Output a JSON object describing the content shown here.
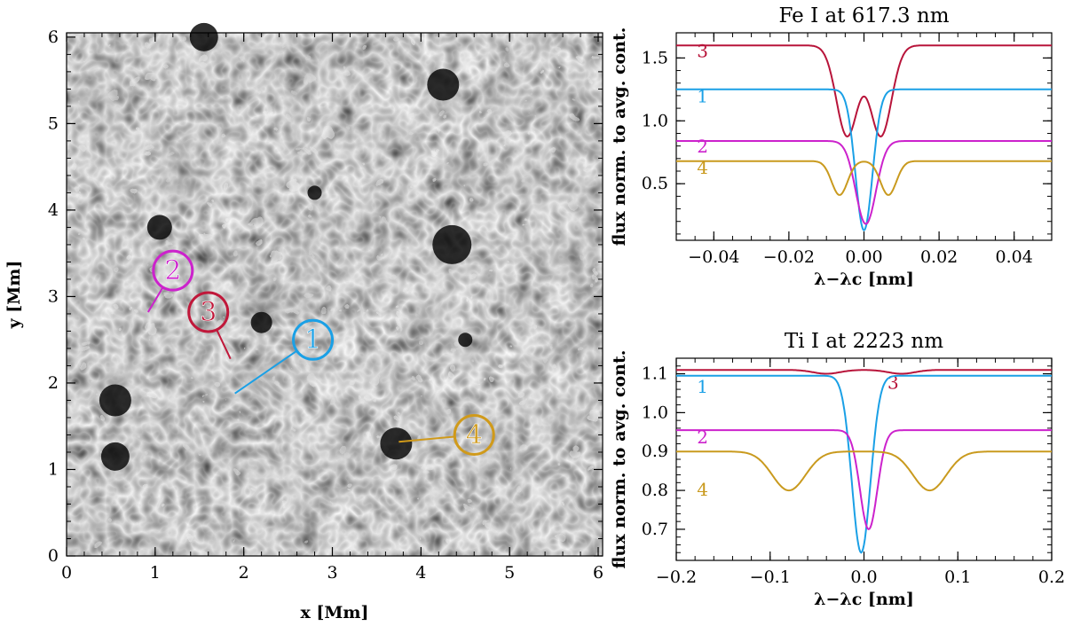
{
  "chart_data": [
    {
      "type": "heatmap",
      "xlabel": "x [Mm]",
      "ylabel": "y [Mm]",
      "xlim": [
        0,
        6.05
      ],
      "ylim": [
        0,
        6.05
      ],
      "x_ticks": [
        "0",
        "1",
        "2",
        "3",
        "4",
        "5",
        "6"
      ],
      "y_ticks": [
        "0",
        "1",
        "2",
        "3",
        "4",
        "5",
        "6"
      ],
      "colormap": "grayscale",
      "markers": [
        {
          "label": "1",
          "color": "#1aa0e6",
          "x": 2.78,
          "y": 2.5,
          "target": [
            1.9,
            1.88
          ]
        },
        {
          "label": "2",
          "color": "#cc22cc",
          "x": 1.2,
          "y": 3.3,
          "target": [
            0.92,
            2.82
          ]
        },
        {
          "label": "3",
          "color": "#c0183a",
          "x": 1.6,
          "y": 2.82,
          "target": [
            1.85,
            2.28
          ]
        },
        {
          "label": "4",
          "color": "#d09a1a",
          "x": 4.6,
          "y": 1.4,
          "target": [
            3.75,
            1.32
          ]
        }
      ]
    },
    {
      "type": "line",
      "title": "Fe I at 617.3 nm",
      "xlabel": "λ−λc [nm]",
      "ylabel": "flux norm. to avg. cont.",
      "xlim": [
        -0.05,
        0.05
      ],
      "ylim": [
        0.05,
        1.7
      ],
      "x_ticks": [
        "−0.04",
        "−0.02",
        "0.00",
        "0.02",
        "0.04"
      ],
      "y_ticks": [
        "0.5",
        "1.0",
        "1.5"
      ],
      "series": [
        {
          "name": "3",
          "color": "#b8143a",
          "continuum": 1.6,
          "dips": [
            {
              "c": -0.0045,
              "w": 0.004,
              "d": 0.72
            },
            {
              "c": 0.0045,
              "w": 0.004,
              "d": 0.72
            },
            {
              "c": 0.0,
              "w": 0.006,
              "d": 0.0
            }
          ],
          "label_pos": [
            -0.0445,
            1.55
          ]
        },
        {
          "name": "1",
          "color": "#1aa0e6",
          "continuum": 1.25,
          "dips": [
            {
              "c": 0.0,
              "w": 0.0032,
              "d": 1.12
            }
          ],
          "label_pos": [
            -0.0445,
            1.19
          ]
        },
        {
          "name": "2",
          "color": "#cc22cc",
          "continuum": 0.84,
          "dips": [
            {
              "c": 0.0005,
              "w": 0.0038,
              "d": 0.66
            }
          ],
          "label_pos": [
            -0.0445,
            0.79
          ]
        },
        {
          "name": "4",
          "color": "#c99a1e",
          "continuum": 0.68,
          "dips": [
            {
              "c": -0.0065,
              "w": 0.003,
              "d": 0.27
            },
            {
              "c": 0.0065,
              "w": 0.003,
              "d": 0.27
            }
          ],
          "label_pos": [
            -0.0445,
            0.62
          ]
        }
      ]
    },
    {
      "type": "line",
      "title": "Ti I at 2223 nm",
      "xlabel": "λ−λc [nm]",
      "ylabel": "flux norm. to avg. cont.",
      "xlim": [
        -0.2,
        0.2
      ],
      "ylim": [
        0.62,
        1.14
      ],
      "x_ticks": [
        "−0.2",
        "−0.1",
        "0.0",
        "0.1",
        "0.2"
      ],
      "y_ticks": [
        "0.7",
        "0.8",
        "0.9",
        "1.0",
        "1.1"
      ],
      "series": [
        {
          "name": "3",
          "color": "#b8143a",
          "continuum": 1.11,
          "dips": [
            {
              "c": -0.04,
              "w": 0.02,
              "d": 0.01
            },
            {
              "c": 0.04,
              "w": 0.02,
              "d": 0.01
            }
          ],
          "label_pos": [
            0.025,
            1.075
          ]
        },
        {
          "name": "1",
          "color": "#1aa0e6",
          "continuum": 1.095,
          "dips": [
            {
              "c": -0.003,
              "w": 0.014,
              "d": 0.455
            }
          ],
          "label_pos": [
            -0.178,
            1.065
          ]
        },
        {
          "name": "2",
          "color": "#cc22cc",
          "continuum": 0.955,
          "dips": [
            {
              "c": 0.005,
              "w": 0.013,
              "d": 0.255
            }
          ],
          "label_pos": [
            -0.178,
            0.935
          ]
        },
        {
          "name": "4",
          "color": "#c99a1e",
          "continuum": 0.9,
          "dips": [
            {
              "c": -0.08,
              "w": 0.025,
              "d": 0.1
            },
            {
              "c": 0.07,
              "w": 0.025,
              "d": 0.1
            }
          ],
          "label_pos": [
            -0.178,
            0.8
          ]
        }
      ]
    }
  ]
}
